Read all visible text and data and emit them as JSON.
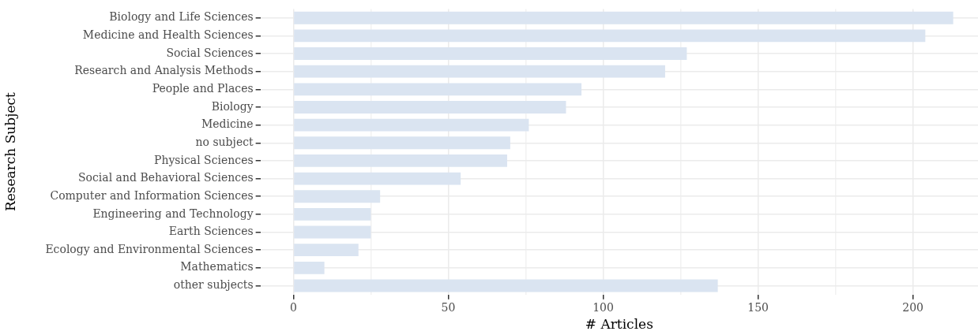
{
  "chart_data": {
    "type": "bar",
    "orientation": "horizontal",
    "xlabel": "# Articles",
    "ylabel": "Research Subject",
    "categories": [
      "Biology and Life Sciences",
      "Medicine and Health Sciences",
      "Social Sciences",
      "Research and Analysis Methods",
      "People and Places",
      "Biology",
      "Medicine",
      "no subject",
      "Physical Sciences",
      "Social and Behavioral Sciences",
      "Computer and Information Sciences",
      "Engineering and Technology",
      "Earth Sciences",
      "Ecology and Environmental Sciences",
      "Mathematics",
      "other subjects"
    ],
    "values": [
      213,
      204,
      127,
      120,
      93,
      88,
      76,
      70,
      69,
      54,
      28,
      25,
      25,
      21,
      10,
      137
    ],
    "color": "#dae4f1",
    "xlim": [
      -10.65,
      221
    ],
    "xticks": [
      0,
      {
        "value": 25,
        "label": null
      },
      50,
      {
        "value": 75,
        "label": null
      },
      100,
      {
        "value": 125,
        "label": null
      },
      150,
      {
        "value": 175,
        "label": null
      },
      200
    ],
    "grid": true
  }
}
